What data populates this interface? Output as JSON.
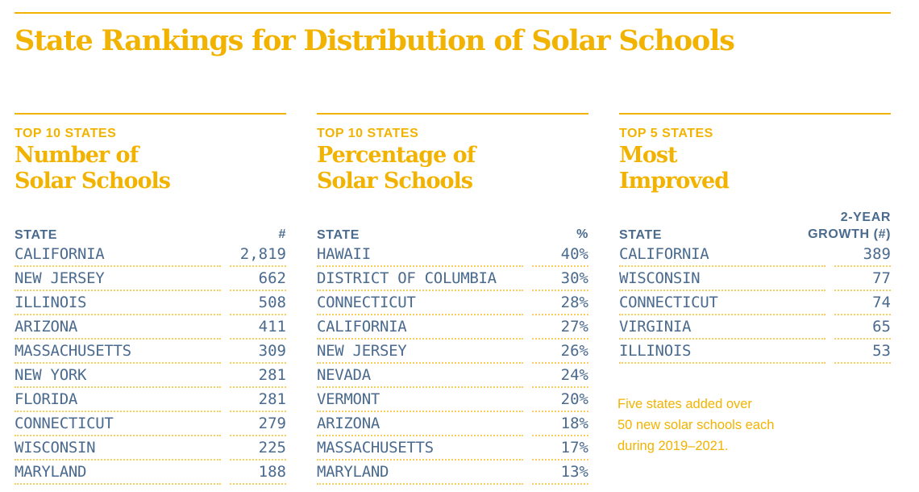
{
  "title": "State Rankings for Distribution of Solar Schools",
  "columns": [
    {
      "kicker": "TOP 10 STATES",
      "heading_line1": "Number of",
      "heading_line2": "Solar Schools",
      "header_state": "STATE",
      "header_value": "#",
      "rows": [
        {
          "state": "CALIFORNIA",
          "value": "2,819"
        },
        {
          "state": "NEW JERSEY",
          "value": "662"
        },
        {
          "state": "ILLINOIS",
          "value": "508"
        },
        {
          "state": "ARIZONA",
          "value": "411"
        },
        {
          "state": "MASSACHUSETTS",
          "value": "309"
        },
        {
          "state": "NEW YORK",
          "value": "281"
        },
        {
          "state": "FLORIDA",
          "value": "281"
        },
        {
          "state": "CONNECTICUT",
          "value": "279"
        },
        {
          "state": "WISCONSIN",
          "value": "225"
        },
        {
          "state": "MARYLAND",
          "value": "188"
        }
      ]
    },
    {
      "kicker": "TOP 10 STATES",
      "heading_line1": "Percentage of",
      "heading_line2": "Solar Schools",
      "header_state": "STATE",
      "header_value": "%",
      "rows": [
        {
          "state": "HAWAII",
          "value": "40%"
        },
        {
          "state": "DISTRICT OF COLUMBIA",
          "value": "30%"
        },
        {
          "state": "CONNECTICUT",
          "value": "28%"
        },
        {
          "state": "CALIFORNIA",
          "value": "27%"
        },
        {
          "state": "NEW JERSEY",
          "value": "26%"
        },
        {
          "state": "NEVADA",
          "value": "24%"
        },
        {
          "state": "VERMONT",
          "value": "20%"
        },
        {
          "state": "ARIZONA",
          "value": "18%"
        },
        {
          "state": "MASSACHUSETTS",
          "value": "17%"
        },
        {
          "state": "MARYLAND",
          "value": "13%"
        }
      ]
    },
    {
      "kicker": "TOP 5 STATES",
      "heading_line1": "Most",
      "heading_line2": "Improved",
      "header_state": "STATE",
      "header_value_line1": "2-YEAR",
      "header_value": "GROWTH (#)",
      "rows": [
        {
          "state": "CALIFORNIA",
          "value": "389"
        },
        {
          "state": "WISCONSIN",
          "value": "77"
        },
        {
          "state": "CONNECTICUT",
          "value": "74"
        },
        {
          "state": "VIRGINIA",
          "value": "65"
        },
        {
          "state": "ILLINOIS",
          "value": "53"
        }
      ]
    }
  ],
  "note": [
    "Five states added over",
    "50 new solar schools each",
    "during 2019–2021."
  ],
  "colors": {
    "accent": "#f2b300",
    "text": "#4a6a8e"
  }
}
